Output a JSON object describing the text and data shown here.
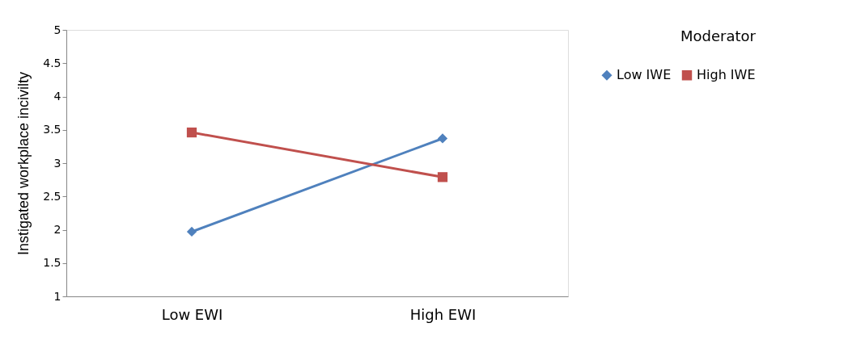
{
  "chart_data": {
    "type": "line",
    "ylabel": "Instigated workplace incivilty",
    "legend_title": "Moderator",
    "categories": [
      "Low EWI",
      "High EWI"
    ],
    "series": [
      {
        "name": "Low IWE",
        "color": "#4f81bd",
        "marker": "diamond",
        "values": [
          1.97,
          3.37
        ]
      },
      {
        "name": "High IWE",
        "color": "#c0504d",
        "marker": "square",
        "values": [
          3.46,
          2.79
        ]
      }
    ],
    "ylim": [
      1,
      5
    ],
    "yticks": [
      1,
      1.5,
      2,
      2.5,
      3,
      3.5,
      4,
      4.5,
      5
    ],
    "grid": false,
    "legend": "right",
    "line_style": "solid"
  }
}
